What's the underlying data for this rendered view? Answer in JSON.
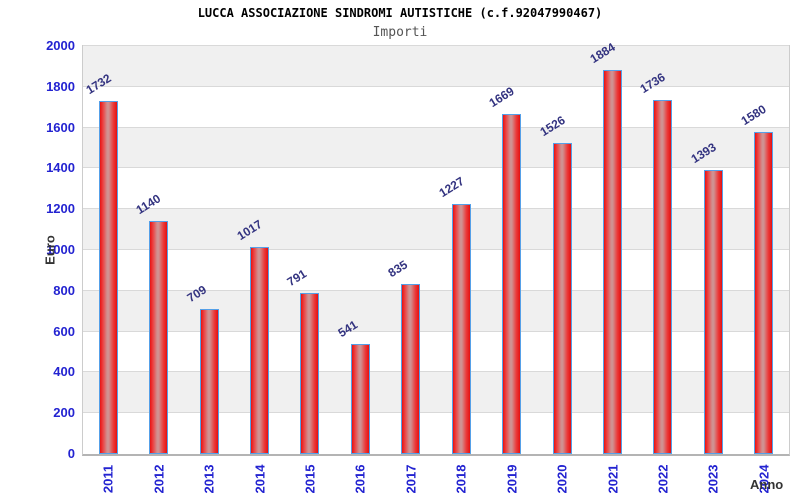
{
  "chart_data": {
    "type": "bar",
    "title": "LUCCA ASSOCIAZIONE SINDROMI AUTISTICHE (c.f.92047990467)",
    "subtitle": "Importi",
    "xlabel": "Anno",
    "ylabel": "Euro",
    "categories": [
      "2011",
      "2012",
      "2013",
      "2014",
      "2015",
      "2016",
      "2017",
      "2018",
      "2019",
      "2020",
      "2021",
      "2022",
      "2023",
      "2024"
    ],
    "values": [
      1732,
      1140,
      709,
      1017,
      791,
      541,
      835,
      1227,
      1669,
      1526,
      1884,
      1736,
      1393,
      1580
    ],
    "ylim": [
      0,
      2000
    ],
    "ytick_step": 200,
    "legend": "none",
    "grid": "horizontal gridlines every 200 with alternating gray/white bands",
    "value_labels": "above each bar, rotated",
    "colors": {
      "tick_label_blue": "#2323d1",
      "value_label_navy": "#333380",
      "bar_red": "#e81212",
      "bar_highlight": "#d09191",
      "bar_border_blue": "#55a0e8",
      "band_gray": "#f0f0f0",
      "band_white": "#ffffff",
      "grid_line": "#d9d9d9",
      "title_color": "#000000",
      "subtitle_gray": "#555555",
      "axis_title_color": "#333333"
    }
  }
}
